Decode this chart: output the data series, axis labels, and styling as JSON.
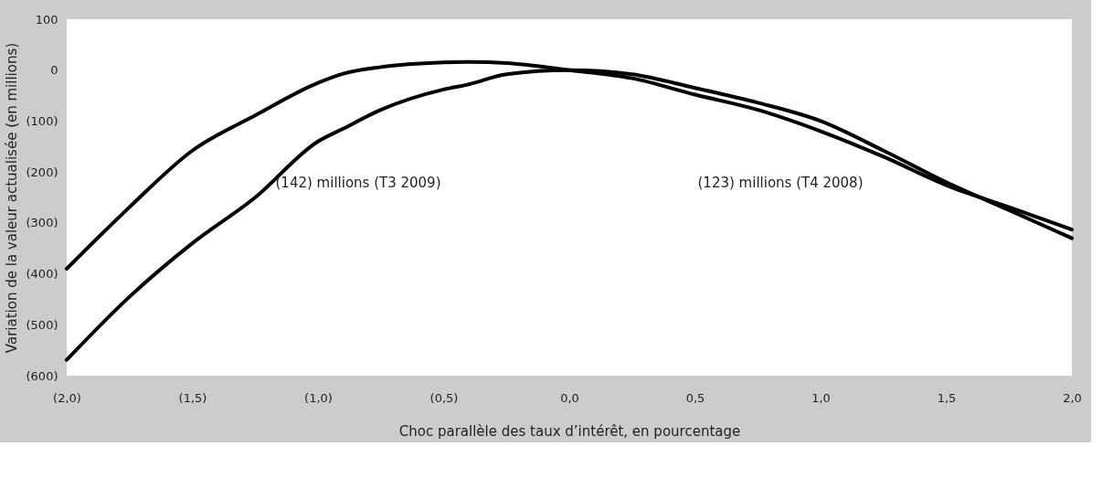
{
  "chart_data": {
    "type": "line",
    "xlabel": "Choc parallèle des taux d’intérêt, en pourcentage",
    "ylabel": "Variation de la valeur actualisée (en millions)",
    "x": [
      -2,
      -1.75,
      -1.5,
      -1.25,
      -1,
      -0.9,
      -0.75,
      -0.5,
      -0.4,
      -0.25,
      0,
      0.25,
      0.5,
      0.75,
      1,
      1.25,
      1.5,
      1.75,
      2
    ],
    "series": [
      {
        "color": "#000000",
        "values": [
          -390,
          -269,
          -158,
          -89,
          -25,
          -7,
          6,
          15,
          16,
          14,
          0,
          -16,
          -48,
          -78,
          -120,
          -170,
          -226,
          -269,
          -313
        ]
      },
      {
        "color": "#000000",
        "values": [
          -569,
          -445,
          -340,
          -250,
          -140,
          -115,
          -78,
          -38,
          -28,
          -8,
          0,
          -8,
          -35,
          -64,
          -100,
          -158,
          -220,
          -275,
          -330
        ]
      }
    ],
    "xlim": [
      -2,
      2
    ],
    "ylim": [
      -600,
      100
    ],
    "xticks": [
      {
        "value": -2,
        "label": "(2,0)"
      },
      {
        "value": -1.5,
        "label": "(1,5)"
      },
      {
        "value": -1,
        "label": "(1,0)"
      },
      {
        "value": -0.5,
        "label": "(0,5)"
      },
      {
        "value": 0,
        "label": "0,0"
      },
      {
        "value": 0.5,
        "label": "0,5"
      },
      {
        "value": 1,
        "label": "1,0"
      },
      {
        "value": 1.5,
        "label": "1,5"
      },
      {
        "value": 2,
        "label": "2,0"
      }
    ],
    "yticks": [
      100,
      0,
      {
        "value": -100,
        "label": "(100)"
      },
      {
        "value": -200,
        "label": "(200)"
      },
      {
        "value": -300,
        "label": "(300)"
      },
      {
        "value": -400,
        "label": "(400)"
      },
      {
        "value": -500,
        "label": "(500)"
      },
      {
        "value": -600,
        "label": "(600)"
      }
    ],
    "annotations": [
      "(142) millions (T3 2009)",
      "(123) millions (T4 2008)"
    ],
    "grid": false,
    "marker": "none",
    "line_style": "solid"
  }
}
